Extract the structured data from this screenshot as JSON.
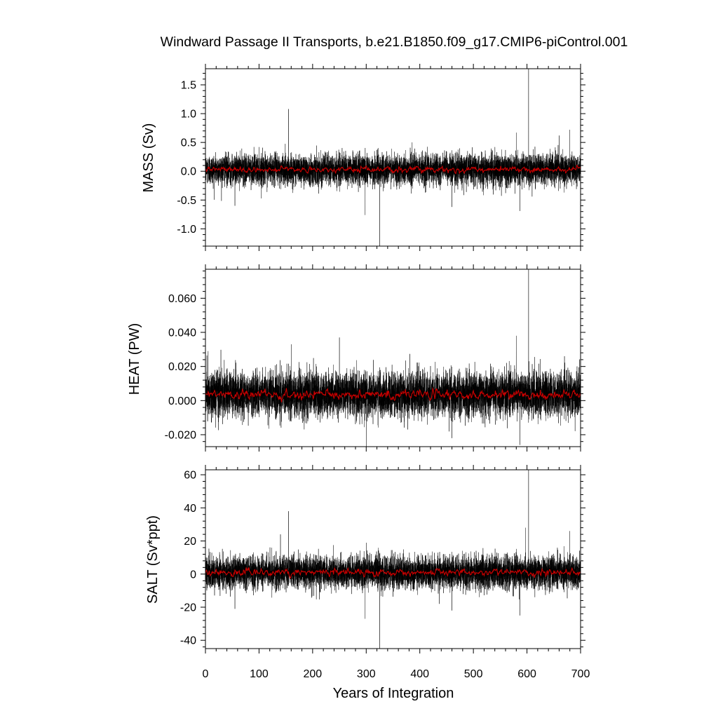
{
  "chart_data": {
    "type": "line",
    "title": "Windward Passage II Transports, b.e21.B1850.f09_g17.CMIP6-piControl.001",
    "xlabel": "Years of Integration",
    "xlim": [
      0,
      700
    ],
    "xticks": [
      0,
      100,
      200,
      300,
      400,
      500,
      600,
      700
    ],
    "xtick_labels": [
      "0",
      "100",
      "200",
      "300",
      "400",
      "500",
      "600",
      "700"
    ],
    "colors": {
      "raw": "#000000",
      "smoothed": "#cc0000",
      "axes": "#000000"
    },
    "panels": [
      {
        "ylabel": "MASS (Sv)",
        "ylim": [
          -1.3,
          1.78
        ],
        "yticks": [
          -1.0,
          -0.5,
          0.0,
          0.5,
          1.0,
          1.5
        ],
        "ytick_labels": [
          "-1.0",
          "-0.5",
          "0.0",
          "0.5",
          "1.0",
          "1.5"
        ],
        "mean": 0.03,
        "noise_amplitude": 0.13,
        "smoothed_amplitude": 0.03,
        "spikes": [
          {
            "x": 155,
            "y": 1.08
          },
          {
            "x": 325,
            "y": -1.3
          },
          {
            "x": 298,
            "y": -0.76
          },
          {
            "x": 603,
            "y": 1.78
          },
          {
            "x": 587,
            "y": -0.69
          },
          {
            "x": 680,
            "y": 0.72
          },
          {
            "x": 55,
            "y": -0.6
          },
          {
            "x": 460,
            "y": -0.62
          },
          {
            "x": 580,
            "y": 0.67
          },
          {
            "x": 660,
            "y": 0.62
          }
        ]
      },
      {
        "ylabel": "HEAT (PW)",
        "ylim": [
          -0.027,
          0.077
        ],
        "yticks": [
          -0.02,
          0.0,
          0.02,
          0.04,
          0.06
        ],
        "ytick_labels": [
          "-0.020",
          "0.000",
          "0.020",
          "0.040",
          "0.060"
        ],
        "mean": 0.0035,
        "noise_amplitude": 0.0065,
        "smoothed_amplitude": 0.0015,
        "spikes": [
          {
            "x": 603,
            "y": 0.077
          },
          {
            "x": 250,
            "y": 0.037
          },
          {
            "x": 580,
            "y": 0.038
          },
          {
            "x": 300,
            "y": -0.027
          },
          {
            "x": 587,
            "y": -0.026
          },
          {
            "x": 5,
            "y": 0.029
          },
          {
            "x": 160,
            "y": 0.033
          },
          {
            "x": 460,
            "y": -0.022
          },
          {
            "x": 670,
            "y": 0.026
          }
        ]
      },
      {
        "ylabel": "SALT (Sv*ppt)",
        "ylim": [
          -45,
          63
        ],
        "yticks": [
          -40,
          -20,
          0,
          20,
          40,
          60
        ],
        "ytick_labels": [
          "-40",
          "-20",
          "0",
          "20",
          "40",
          "60"
        ],
        "mean": 1.0,
        "noise_amplitude": 4.8,
        "smoothed_amplitude": 1.2,
        "spikes": [
          {
            "x": 155,
            "y": 38
          },
          {
            "x": 325,
            "y": -45
          },
          {
            "x": 298,
            "y": -27
          },
          {
            "x": 603,
            "y": 63
          },
          {
            "x": 597,
            "y": 28
          },
          {
            "x": 587,
            "y": -25
          },
          {
            "x": 680,
            "y": 26
          },
          {
            "x": 55,
            "y": -21
          },
          {
            "x": 460,
            "y": -22
          },
          {
            "x": 140,
            "y": 24
          }
        ]
      }
    ]
  }
}
